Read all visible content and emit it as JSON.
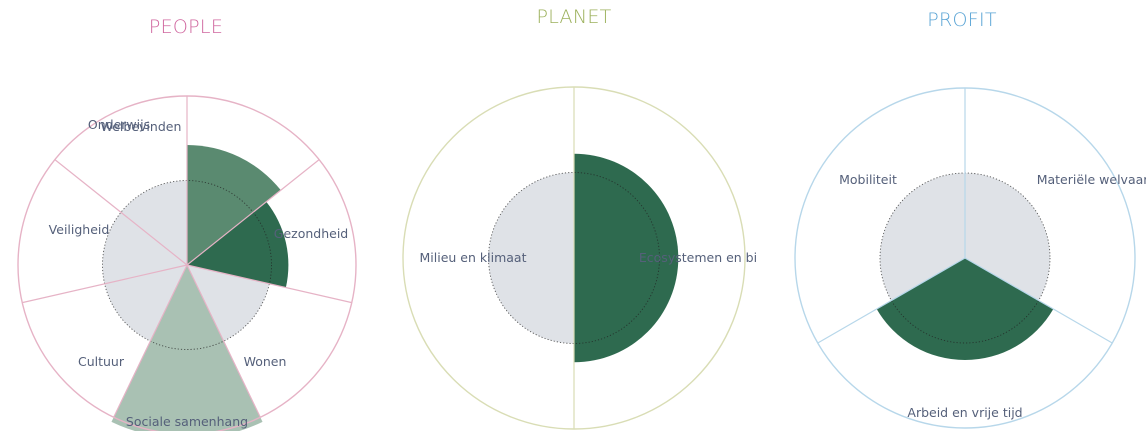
{
  "colors": {
    "people": "#d0679f",
    "planet": "#9cb15c",
    "profit": "#5aa4d5",
    "inner_circle": "#dfe2e7",
    "dark_green": "#2e6a4f",
    "mid_green": "#5a8a70",
    "light_green": "#a9c1b3",
    "label": "#55607a",
    "people_ring": "#e6b3c6",
    "planet_ring": "#d9ddb5",
    "profit_ring": "#b7d7ea"
  },
  "chart_data": [
    {
      "type": "polar-bar",
      "title": "PEOPLE",
      "outer_radius": 1.0,
      "inner_radius": 0.5,
      "threshold_radius": 0.5,
      "categories": [
        "Welbevinden",
        "Gezondheid",
        "Wonen",
        "Sociale samenhang",
        "Cultuur",
        "Veiligheid",
        "Onderwijs"
      ],
      "values": [
        0.71,
        0.6,
        0,
        1.03,
        0,
        0,
        0
      ],
      "fill": [
        "mid_green",
        "dark_green",
        "",
        "light_green",
        "",
        "",
        ""
      ]
    },
    {
      "type": "polar-bar",
      "title": "PLANET",
      "outer_radius": 1.0,
      "inner_radius": 0.5,
      "threshold_radius": 0.5,
      "categories": [
        "Ecosystemen en bi",
        "Milieu en klimaat"
      ],
      "values": [
        0.61,
        0
      ],
      "fill": [
        "dark_green",
        ""
      ]
    },
    {
      "type": "polar-bar",
      "title": "PROFIT",
      "outer_radius": 1.0,
      "inner_radius": 0.5,
      "threshold_radius": 0.5,
      "categories": [
        "Materiële welvaart",
        "Arbeid en vrije tijd",
        "Mobiliteit"
      ],
      "values": [
        0,
        0.6,
        0
      ],
      "fill": [
        "",
        "dark_green",
        ""
      ]
    }
  ]
}
